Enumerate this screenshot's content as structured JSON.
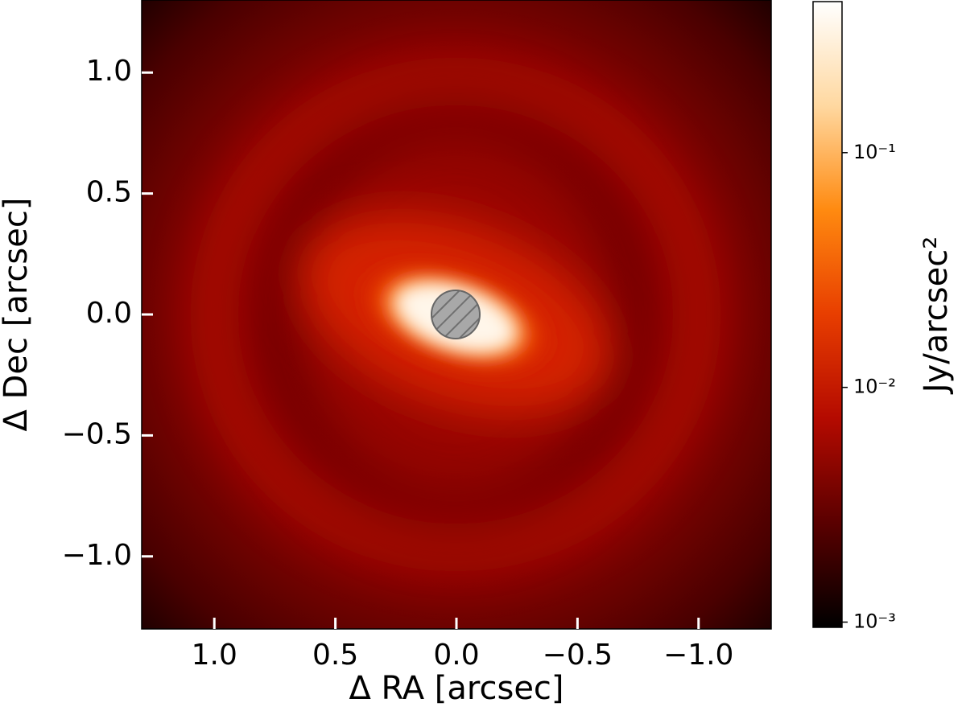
{
  "chart_data": {
    "type": "image",
    "xlabel": "Δ RA [arcsec]",
    "ylabel": "Δ Dec [arcsec]",
    "xlim": [
      1.3,
      -1.3
    ],
    "ylim": [
      -1.3,
      1.3
    ],
    "xticks": [
      {
        "value": 1.0,
        "label": "1.0"
      },
      {
        "value": 0.5,
        "label": "0.5"
      },
      {
        "value": 0.0,
        "label": "0.0"
      },
      {
        "value": -0.5,
        "label": "−0.5"
      },
      {
        "value": -1.0,
        "label": "−1.0"
      }
    ],
    "yticks": [
      {
        "value": -1.0,
        "label": "−1.0"
      },
      {
        "value": -0.5,
        "label": "−0.5"
      },
      {
        "value": 0.0,
        "label": "0.0"
      },
      {
        "value": 0.5,
        "label": "0.5"
      },
      {
        "value": 1.0,
        "label": "1.0"
      }
    ],
    "colorbar": {
      "label": "Jy/arcsec²",
      "scale": "log",
      "lim": [
        0.00095,
        0.44
      ],
      "ticks": [
        {
          "value": 0.001,
          "label": "10⁻³"
        },
        {
          "value": 0.01,
          "label": "10⁻²"
        },
        {
          "value": 0.1,
          "label": "10⁻¹"
        }
      ],
      "colormap": [
        "#000000",
        "#5a0000",
        "#b40a00",
        "#e83e00",
        "#ff8a10",
        "#ffd8a0",
        "#ffffff"
      ]
    }
  }
}
